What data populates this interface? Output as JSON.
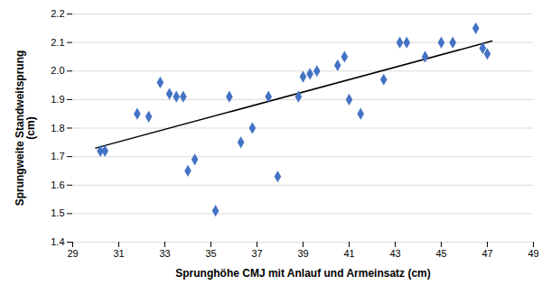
{
  "chart_data": {
    "type": "scatter",
    "x": [
      30.2,
      30.4,
      31.8,
      32.3,
      32.8,
      33.2,
      33.5,
      33.8,
      34.0,
      34.3,
      35.2,
      35.8,
      36.3,
      36.8,
      37.5,
      37.9,
      38.8,
      39.0,
      39.3,
      39.6,
      40.5,
      40.8,
      41.0,
      41.5,
      42.5,
      43.2,
      43.5,
      44.3,
      45.0,
      45.5,
      46.5,
      46.8,
      47.0
    ],
    "values": [
      1.72,
      1.72,
      1.85,
      1.84,
      1.96,
      1.92,
      1.91,
      1.91,
      1.65,
      1.69,
      1.51,
      1.91,
      1.75,
      1.8,
      1.91,
      1.63,
      1.91,
      1.98,
      1.99,
      2.0,
      2.02,
      2.05,
      1.9,
      1.85,
      1.97,
      2.1,
      2.1,
      2.05,
      2.1,
      2.1,
      2.15,
      2.08,
      2.06
    ],
    "color": "#4472C4",
    "marker": "diamond",
    "trendline": {
      "x": [
        30.0,
        47.2
      ],
      "values": [
        1.73,
        2.105
      ],
      "color": "#000000"
    },
    "xlabel": "Sprunghöhe CMJ mit Anlauf und Armeinsatz (cm)",
    "ylabel": "Sprungweite Standweitsprung\n(cm)",
    "xlim": [
      29,
      49
    ],
    "ylim": [
      1.4,
      2.2
    ],
    "xticks": [
      29,
      31,
      33,
      35,
      37,
      39,
      41,
      43,
      45,
      47,
      49
    ],
    "yticks": [
      1.4,
      1.5,
      1.6,
      1.7,
      1.8,
      1.9,
      {
        "value": 2.0,
        "label": "2.0"
      },
      2.1,
      2.2
    ],
    "grid": "y"
  }
}
